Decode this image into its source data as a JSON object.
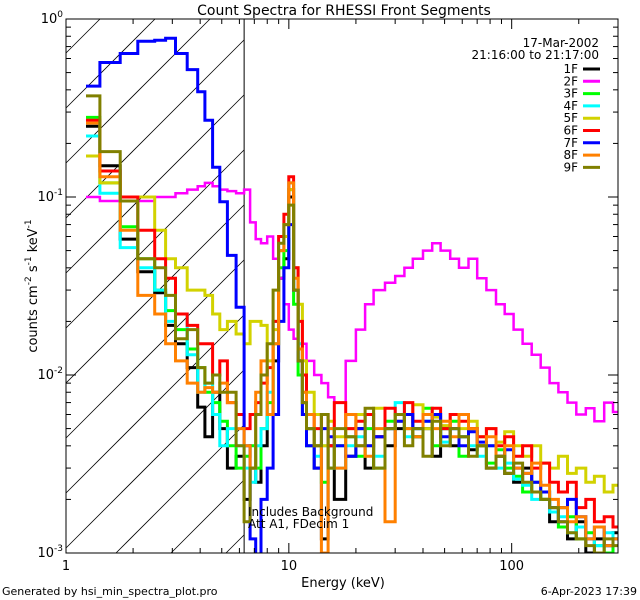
{
  "chart_data": {
    "type": "line",
    "title": "Count Spectra for RHESSI Front Segments",
    "xlabel": "Energy (keV)",
    "ylabel": {
      "base": "counts cm",
      "e1": "-2",
      "mid1": " s",
      "e2": "-1",
      "mid2": " keV",
      "e3": "-1"
    },
    "xscale": "log",
    "yscale": "log",
    "xlim": [
      1,
      300
    ],
    "ylim": [
      0.001,
      1
    ],
    "x_tick_labels": [
      {
        "value": 1,
        "label": "1"
      },
      {
        "value": 10,
        "label": "10"
      },
      {
        "value": 100,
        "label": "100"
      }
    ],
    "y_tick_labels": [
      {
        "value": 1,
        "base": "10",
        "exp": "0"
      },
      {
        "value": 0.1,
        "base": "10",
        "exp": "-1"
      },
      {
        "value": 0.01,
        "base": "10",
        "exp": "-2"
      },
      {
        "value": 0.001,
        "base": "10",
        "exp": "-3"
      }
    ],
    "excluded_region_keV": [
      1,
      6.3
    ],
    "date": "17-Mar-2002",
    "time_range": "21:16:00 to 21:17:00",
    "annotations": [
      "Includes Background",
      "Att A1, FDecim  1"
    ],
    "legend_placement": "top-right",
    "bin_edges_keV": [
      1.23,
      1.42,
      1.75,
      2.1,
      2.5,
      2.8,
      3.1,
      3.5,
      3.9,
      4.2,
      4.55,
      4.9,
      5.3,
      5.8,
      6.3,
      6.7,
      7.1,
      7.5,
      8,
      8.5,
      9,
      9.5,
      10,
      10.5,
      11,
      11.5,
      12,
      13,
      14,
      15,
      16,
      18,
      20,
      22,
      24,
      27,
      30,
      33,
      36,
      40,
      44,
      48,
      53,
      58,
      64,
      70,
      77,
      85,
      93,
      102,
      112,
      123,
      135,
      148,
      162,
      178,
      195,
      215,
      235,
      260,
      285,
      300
    ],
    "series": [
      {
        "name": "1F",
        "color": "#000000",
        "values": [
          0.25,
          0.15,
          0.058,
          0.038,
          0.029,
          0.019,
          0.015,
          0.011,
          0.0066,
          0.0045,
          0.008,
          0.005,
          0.003,
          0.0035,
          0.002,
          0.003,
          0.0025,
          0.004,
          0.006,
          0.012,
          0.035,
          0.045,
          0.1,
          0.03,
          0.012,
          0.007,
          0.005,
          0.003,
          0.0012,
          0.004,
          0.002,
          0.0035,
          0.005,
          0.003,
          0.0045,
          0.004,
          0.005,
          0.006,
          0.0045,
          0.005,
          0.0035,
          0.005,
          0.004,
          0.0045,
          0.0038,
          0.004,
          0.003,
          0.0035,
          0.0028,
          0.0025,
          0.003,
          0.0022,
          0.002,
          0.0015,
          0.0018,
          0.0012,
          0.0015,
          0.001,
          0.0012,
          0.0011,
          0.0013
        ]
      },
      {
        "name": "2F",
        "color": "#ff00ff",
        "values": [
          0.1,
          0.095,
          0.095,
          0.095,
          0.1,
          0.1,
          0.105,
          0.11,
          0.115,
          0.12,
          0.115,
          0.11,
          0.108,
          0.105,
          0.11,
          0.072,
          0.058,
          0.055,
          0.06,
          0.045,
          0.035,
          0.025,
          0.018,
          0.016,
          0.02,
          0.015,
          0.012,
          0.01,
          0.009,
          0.0075,
          0.007,
          0.012,
          0.018,
          0.025,
          0.03,
          0.033,
          0.036,
          0.04,
          0.045,
          0.05,
          0.055,
          0.05,
          0.045,
          0.04,
          0.045,
          0.035,
          0.03,
          0.025,
          0.022,
          0.018,
          0.015,
          0.013,
          0.011,
          0.009,
          0.008,
          0.007,
          0.006,
          0.0065,
          0.0055,
          0.007,
          0.0062
        ]
      },
      {
        "name": "3F",
        "color": "#00ff00",
        "values": [
          0.28,
          0.12,
          0.068,
          0.045,
          0.03,
          0.023,
          0.018,
          0.014,
          0.011,
          0.008,
          0.007,
          0.0055,
          0.004,
          0.003,
          0.0035,
          0.004,
          0.003,
          0.005,
          0.007,
          0.015,
          0.04,
          0.05,
          0.11,
          0.025,
          0.01,
          0.006,
          0.004,
          0.004,
          0.0025,
          0.003,
          0.004,
          0.0045,
          0.0035,
          0.005,
          0.003,
          0.0055,
          0.006,
          0.005,
          0.0045,
          0.0065,
          0.004,
          0.005,
          0.0055,
          0.0035,
          0.005,
          0.004,
          0.0032,
          0.0038,
          0.003,
          0.0027,
          0.0022,
          0.0025,
          0.002,
          0.0018,
          0.0014,
          0.0016,
          0.0012,
          0.0013,
          0.0011,
          0.001,
          0.0012
        ]
      },
      {
        "name": "4F",
        "color": "#00ffff",
        "values": [
          0.22,
          0.105,
          0.052,
          0.04,
          0.03,
          0.02,
          0.022,
          0.013,
          0.008,
          0.009,
          0.006,
          0.004,
          0.005,
          0.004,
          0.003,
          0.0025,
          0.004,
          0.005,
          0.008,
          0.02,
          0.05,
          0.06,
          0.12,
          0.03,
          0.015,
          0.008,
          0.005,
          0.0035,
          0.004,
          0.005,
          0.003,
          0.004,
          0.0045,
          0.006,
          0.0035,
          0.005,
          0.007,
          0.0045,
          0.005,
          0.0055,
          0.006,
          0.0042,
          0.005,
          0.0045,
          0.004,
          0.0035,
          0.004,
          0.003,
          0.0032,
          0.0026,
          0.0024,
          0.002,
          0.0022,
          0.0017,
          0.0016,
          0.0013,
          0.0014,
          0.0012,
          0.0011,
          0.0013,
          0.0012
        ]
      },
      {
        "name": "5F",
        "color": "#d2d200",
        "values": [
          0.17,
          0.12,
          0.1,
          0.1,
          0.065,
          0.045,
          0.04,
          0.03,
          0.03,
          0.028,
          0.022,
          0.018,
          0.02,
          0.017,
          0.015,
          0.02,
          0.02,
          0.019,
          0.012,
          0.018,
          0.05,
          0.06,
          0.11,
          0.04,
          0.025,
          0.012,
          0.008,
          0.006,
          0.004,
          0.0055,
          0.0045,
          0.005,
          0.006,
          0.004,
          0.0065,
          0.005,
          0.0055,
          0.006,
          0.0068,
          0.005,
          0.0058,
          0.0052,
          0.006,
          0.005,
          0.0055,
          0.0045,
          0.005,
          0.0042,
          0.0048,
          0.004,
          0.0035,
          0.004,
          0.0032,
          0.003,
          0.0035,
          0.0028,
          0.003,
          0.0025,
          0.0027,
          0.0022,
          0.0024
        ]
      },
      {
        "name": "6F",
        "color": "#ff0000",
        "values": [
          0.27,
          0.14,
          0.1,
          0.065,
          0.045,
          0.035,
          0.022,
          0.019,
          0.015,
          0.015,
          0.01,
          0.012,
          0.007,
          0.006,
          0.005,
          0.006,
          0.007,
          0.009,
          0.011,
          0.02,
          0.06,
          0.08,
          0.13,
          0.04,
          0.02,
          0.01,
          0.006,
          0.005,
          0.006,
          0.004,
          0.007,
          0.005,
          0.0055,
          0.006,
          0.0045,
          0.0065,
          0.006,
          0.007,
          0.0055,
          0.006,
          0.0065,
          0.005,
          0.006,
          0.0055,
          0.005,
          0.0045,
          0.005,
          0.004,
          0.0045,
          0.0035,
          0.004,
          0.003,
          0.0032,
          0.0025,
          0.0022,
          0.0025,
          0.0018,
          0.002,
          0.0015,
          0.0016,
          0.0014
        ]
      },
      {
        "name": "7F",
        "color": "#0000ff",
        "values": [
          0.42,
          0.57,
          0.64,
          0.75,
          0.76,
          0.78,
          0.64,
          0.52,
          0.39,
          0.27,
          0.147,
          0.094,
          0.047,
          0.024,
          0.004,
          0.0012,
          0.0009,
          0.002,
          0.003,
          0.006,
          0.02,
          0.04,
          0.07,
          0.03,
          0.012,
          0.006,
          0.004,
          0.003,
          0.005,
          0.0045,
          0.004,
          0.0035,
          0.005,
          0.004,
          0.0045,
          0.005,
          0.0055,
          0.006,
          0.005,
          0.0055,
          0.006,
          0.0045,
          0.005,
          0.004,
          0.0048,
          0.0042,
          0.004,
          0.0035,
          0.0038,
          0.003,
          0.0028,
          0.0025,
          0.0022,
          0.0018,
          0.0015,
          0.002,
          0.0016,
          0.0012,
          0.0014,
          0.0011,
          0.0012
        ]
      },
      {
        "name": "8F",
        "color": "#ff8000",
        "values": [
          0.26,
          0.13,
          0.065,
          0.028,
          0.022,
          0.015,
          0.012,
          0.009,
          0.008,
          0.0085,
          0.008,
          0.009,
          0.007,
          0.005,
          0.004,
          0.003,
          0.008,
          0.012,
          0.006,
          0.015,
          0.05,
          0.07,
          0.12,
          0.035,
          0.014,
          0.008,
          0.006,
          0.004,
          0.001,
          0.005,
          0.003,
          0.006,
          0.004,
          0.0035,
          0.005,
          0.0015,
          0.006,
          0.005,
          0.0045,
          0.006,
          0.005,
          0.0055,
          0.0045,
          0.006,
          0.005,
          0.004,
          0.0045,
          0.0035,
          0.004,
          0.003,
          0.0028,
          0.0032,
          0.0024,
          0.002,
          0.0018,
          0.0015,
          0.0016,
          0.0012,
          0.0014,
          0.0011,
          0.0012
        ]
      },
      {
        "name": "9F",
        "color": "#808000",
        "values": [
          0.37,
          0.18,
          0.095,
          0.045,
          0.04,
          0.028,
          0.016,
          0.018,
          0.011,
          0.009,
          0.01,
          0.008,
          0.008,
          0.004,
          0.0015,
          0.003,
          0.006,
          0.01,
          0.015,
          0.03,
          0.055,
          0.07,
          0.09,
          0.03,
          0.012,
          0.007,
          0.005,
          0.004,
          0.006,
          0.003,
          0.005,
          0.0045,
          0.004,
          0.0065,
          0.003,
          0.005,
          0.006,
          0.004,
          0.005,
          0.0035,
          0.0055,
          0.004,
          0.005,
          0.0045,
          0.0035,
          0.004,
          0.003,
          0.0035,
          0.0028,
          0.0032,
          0.0025,
          0.0022,
          0.002,
          0.0018,
          0.0015,
          0.0013,
          0.0012,
          0.0011,
          0.001,
          0.0012,
          0.0011
        ]
      }
    ]
  },
  "footer": {
    "generated_by": "Generated by hsi_min_spectra_plot.pro",
    "timestamp": "6-Apr-2023 17:39"
  }
}
